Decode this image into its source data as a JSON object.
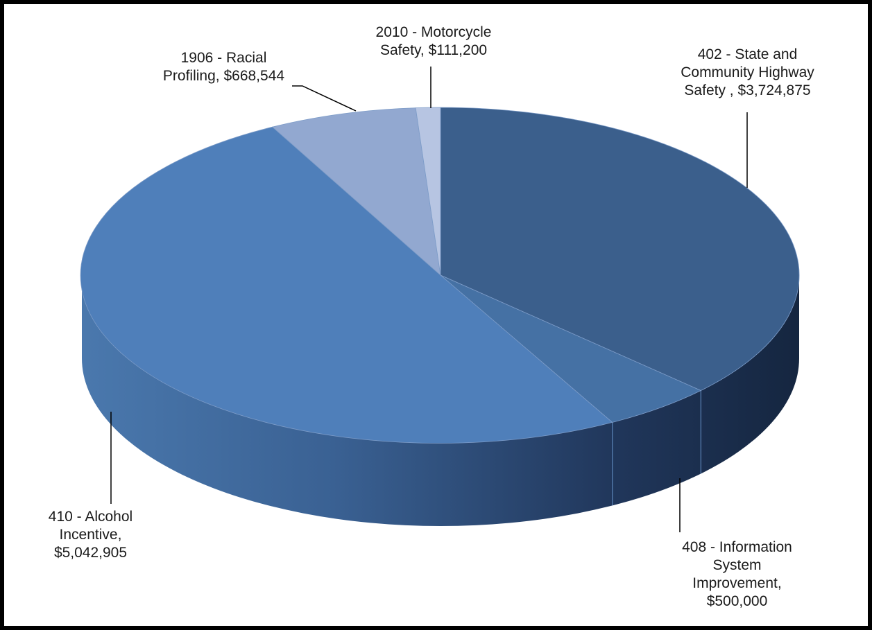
{
  "chart_data": {
    "type": "pie",
    "style": "3d",
    "title": "",
    "slices": [
      {
        "id": "s402",
        "label_lines": [
          "402 - State and",
          "Community Highway",
          "Safety ,  $3,724,875"
        ],
        "category": "402 - State and Community Highway Safety",
        "value": 3724875,
        "color": "#3b5f8c"
      },
      {
        "id": "s408",
        "label_lines": [
          "408 - Information",
          "System",
          "Improvement,",
          "$500,000"
        ],
        "category": "408 - Information System Improvement",
        "value": 500000,
        "color": "#4571a4"
      },
      {
        "id": "s410",
        "label_lines": [
          "410 - Alcohol",
          "Incentive,",
          "$5,042,905"
        ],
        "category": "410 - Alcohol Incentive",
        "value": 5042905,
        "color": "#4f7fba"
      },
      {
        "id": "s1906",
        "label_lines": [
          "1906 - Racial",
          "Profiling,  $668,544"
        ],
        "category": "1906 - Racial Profiling",
        "value": 668544,
        "color": "#92a8d0"
      },
      {
        "id": "s2010",
        "label_lines": [
          "2010 - Motorcycle",
          "Safety,  $111,200"
        ],
        "category": "2010 - Motorcycle Safety",
        "value": 111200,
        "color": "#b7c5e2"
      }
    ]
  }
}
